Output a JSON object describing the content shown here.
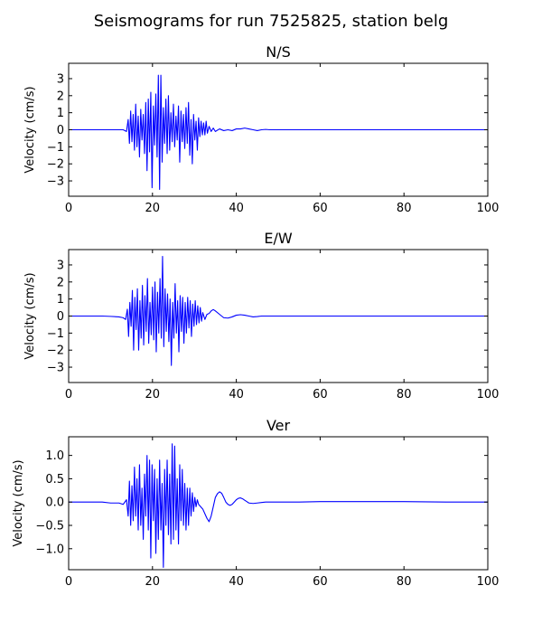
{
  "figure": {
    "suptitle": "Seismograms for run 7525825, station belg"
  },
  "chart_data": [
    {
      "type": "line",
      "title": "N/S",
      "xlabel": "",
      "ylabel": "Velocity (cm/s)",
      "xlim": [
        0,
        100
      ],
      "ylim": [
        -3.9,
        3.9
      ],
      "xticks": [
        0,
        20,
        40,
        60,
        80,
        100
      ],
      "yticks": [
        -3,
        -2,
        -1,
        0,
        1,
        2,
        3
      ],
      "ytick_labels": [
        "−3",
        "−2",
        "−1",
        "0",
        "1",
        "2",
        "3"
      ],
      "line_color": "#0000ff",
      "grid": false,
      "series": [
        {
          "x": [
            0,
            13,
            13.8,
            14.2,
            14.5,
            14.8,
            15.1,
            15.4,
            15.7,
            16.0,
            16.3,
            16.6,
            16.9,
            17.2,
            17.5,
            17.8,
            18.1,
            18.4,
            18.7,
            19.0,
            19.3,
            19.6,
            19.9,
            20.2,
            20.5,
            20.8,
            21.1,
            21.4,
            21.7,
            22.0,
            22.3,
            22.6,
            22.9,
            23.2,
            23.5,
            23.8,
            24.1,
            24.4,
            24.7,
            25.0,
            25.3,
            25.6,
            25.9,
            26.2,
            26.5,
            26.8,
            27.1,
            27.4,
            27.7,
            28.0,
            28.3,
            28.6,
            28.9,
            29.2,
            29.5,
            29.8,
            30.1,
            30.4,
            30.7,
            31.0,
            31.3,
            31.6,
            31.9,
            32.2,
            32.5,
            32.8,
            33.1,
            33.5,
            34.0,
            34.5,
            35.0,
            36.0,
            37.0,
            38.0,
            39.0,
            40.0,
            41.0,
            42.0,
            43.0,
            44.0,
            45.0,
            46.0,
            47.0,
            48.0,
            50.0,
            60.0,
            70.0,
            80.0,
            90.0,
            100.0
          ],
          "values": [
            0,
            0,
            -0.1,
            0.6,
            -0.8,
            1.1,
            -0.7,
            0.9,
            -1.2,
            1.5,
            -1.0,
            0.8,
            -1.6,
            1.2,
            -0.6,
            0.9,
            -1.4,
            1.6,
            -2.4,
            1.8,
            -1.3,
            2.2,
            -3.4,
            1.4,
            -0.9,
            2.1,
            -1.6,
            3.2,
            -3.5,
            3.2,
            -1.9,
            1.3,
            -0.8,
            1.8,
            -1.4,
            2.0,
            -1.2,
            1.0,
            -0.7,
            1.5,
            -1.0,
            0.8,
            -0.6,
            1.4,
            -1.9,
            1.1,
            -0.7,
            0.9,
            -1.1,
            1.3,
            -0.8,
            1.6,
            -1.5,
            0.6,
            -2.0,
            0.9,
            -0.6,
            0.5,
            -1.2,
            0.7,
            -0.4,
            0.5,
            -0.3,
            0.4,
            -0.3,
            0.5,
            -0.2,
            0.2,
            -0.1,
            0.1,
            -0.1,
            0.05,
            -0.05,
            0.0,
            -0.05,
            0.05,
            0.05,
            0.1,
            0.05,
            0.0,
            -0.05,
            0.0,
            0.02,
            0.0,
            0.0,
            0.0,
            0.0,
            0.0,
            0.0,
            0.0
          ]
        }
      ]
    },
    {
      "type": "line",
      "title": "E/W",
      "xlabel": "",
      "ylabel": "Velocity (cm/s)",
      "xlim": [
        0,
        100
      ],
      "ylim": [
        -3.9,
        3.9
      ],
      "xticks": [
        0,
        20,
        40,
        60,
        80,
        100
      ],
      "yticks": [
        -3,
        -2,
        -1,
        0,
        1,
        2,
        3
      ],
      "ytick_labels": [
        "−3",
        "−2",
        "−1",
        "0",
        "1",
        "2",
        "3"
      ],
      "line_color": "#0000ff",
      "grid": false,
      "series": [
        {
          "x": [
            0,
            8,
            10,
            12,
            13,
            13.6,
            14.0,
            14.3,
            14.6,
            14.9,
            15.2,
            15.5,
            15.8,
            16.1,
            16.4,
            16.7,
            17.0,
            17.3,
            17.6,
            17.9,
            18.2,
            18.5,
            18.8,
            19.1,
            19.4,
            19.7,
            20.0,
            20.3,
            20.6,
            20.9,
            21.2,
            21.5,
            21.8,
            22.1,
            22.4,
            22.7,
            23.0,
            23.3,
            23.6,
            23.9,
            24.2,
            24.5,
            24.8,
            25.1,
            25.4,
            25.7,
            26.0,
            26.3,
            26.6,
            26.9,
            27.2,
            27.5,
            27.8,
            28.1,
            28.4,
            28.7,
            29.0,
            29.3,
            29.6,
            29.9,
            30.2,
            30.5,
            30.8,
            31.1,
            31.4,
            31.7,
            32.0,
            32.5,
            33.0,
            33.5,
            34.0,
            34.5,
            35.0,
            36.0,
            37.0,
            38.0,
            39.0,
            40.0,
            41.0,
            42.0,
            43.0,
            44.0,
            45.0,
            46.0,
            48.0,
            50.0,
            60.0,
            70.0,
            80.0,
            90.0,
            100.0
          ],
          "values": [
            0,
            0,
            -0.02,
            -0.05,
            -0.1,
            -0.2,
            0.4,
            -1.2,
            0.8,
            -0.6,
            1.5,
            -2.0,
            1.1,
            -0.8,
            1.6,
            -2.0,
            0.9,
            -1.3,
            1.8,
            -1.7,
            1.2,
            -0.9,
            2.2,
            -1.6,
            0.8,
            -1.1,
            1.7,
            -1.4,
            2.0,
            -2.1,
            1.4,
            -1.0,
            2.2,
            -1.3,
            3.5,
            -1.8,
            1.6,
            -0.9,
            1.3,
            -1.5,
            1.0,
            -2.9,
            0.8,
            -1.3,
            1.9,
            -1.0,
            0.9,
            -2.1,
            1.2,
            -0.9,
            1.1,
            -1.6,
            0.8,
            -1.0,
            1.1,
            -0.7,
            0.9,
            -1.2,
            0.7,
            -0.6,
            0.9,
            -0.5,
            0.6,
            -0.4,
            0.5,
            -0.3,
            0.2,
            -0.2,
            0.1,
            0.15,
            0.3,
            0.38,
            0.3,
            0.1,
            -0.1,
            -0.12,
            -0.05,
            0.05,
            0.08,
            0.05,
            0.0,
            -0.05,
            -0.03,
            0.0,
            0.0,
            0.0,
            0.0,
            0.0,
            0.0,
            0.0,
            0.0
          ]
        }
      ]
    },
    {
      "type": "line",
      "title": "Ver",
      "xlabel": "",
      "ylabel": "Velocity (cm/s)",
      "xlim": [
        0,
        100
      ],
      "ylim": [
        -1.45,
        1.4
      ],
      "xticks": [
        0,
        20,
        40,
        60,
        80,
        100
      ],
      "yticks": [
        -1.0,
        -0.5,
        0.0,
        0.5,
        1.0
      ],
      "ytick_labels": [
        "−1.0",
        "−0.5",
        "0.0",
        "0.5",
        "1.0"
      ],
      "line_color": "#0000ff",
      "grid": false,
      "series": [
        {
          "x": [
            0,
            8,
            10,
            12,
            13,
            13.8,
            14.2,
            14.5,
            14.8,
            15.1,
            15.4,
            15.7,
            16.0,
            16.3,
            16.6,
            16.9,
            17.2,
            17.5,
            17.8,
            18.1,
            18.4,
            18.7,
            19.0,
            19.3,
            19.6,
            19.9,
            20.2,
            20.5,
            20.8,
            21.1,
            21.4,
            21.7,
            22.0,
            22.3,
            22.6,
            22.9,
            23.2,
            23.5,
            23.8,
            24.1,
            24.4,
            24.7,
            25.0,
            25.3,
            25.6,
            25.9,
            26.2,
            26.5,
            26.8,
            27.1,
            27.4,
            27.7,
            28.0,
            28.3,
            28.6,
            28.9,
            29.2,
            29.5,
            29.8,
            30.1,
            30.4,
            30.7,
            31.0,
            31.5,
            32.0,
            32.5,
            33.0,
            33.5,
            34.0,
            34.5,
            35.0,
            35.5,
            36.0,
            36.5,
            37.0,
            37.5,
            38.0,
            38.5,
            39.0,
            39.5,
            40.0,
            40.5,
            41.0,
            41.5,
            42.0,
            42.5,
            43.0,
            44.0,
            45.0,
            46.0,
            47.0,
            48.0,
            50.0,
            55.0,
            60.0,
            70.0,
            80.0,
            90.0,
            100.0
          ],
          "values": [
            0,
            0,
            -0.02,
            -0.02,
            -0.05,
            0.05,
            -0.3,
            0.45,
            -0.5,
            0.35,
            -0.4,
            0.75,
            -0.3,
            0.5,
            -0.6,
            0.8,
            -0.5,
            0.3,
            -0.8,
            0.6,
            -0.3,
            1.0,
            -0.6,
            0.9,
            -1.2,
            0.8,
            -0.4,
            0.7,
            -1.1,
            0.5,
            -0.8,
            0.9,
            -0.6,
            0.4,
            -1.4,
            0.7,
            -0.5,
            0.9,
            -0.7,
            0.6,
            -0.9,
            1.25,
            -0.8,
            1.2,
            -0.6,
            0.5,
            -0.9,
            0.8,
            -0.4,
            0.7,
            -0.5,
            0.4,
            -0.6,
            0.3,
            -0.5,
            0.3,
            -0.3,
            0.2,
            -0.2,
            0.1,
            -0.1,
            0.05,
            -0.05,
            -0.1,
            -0.15,
            -0.25,
            -0.35,
            -0.42,
            -0.3,
            -0.1,
            0.1,
            0.18,
            0.22,
            0.19,
            0.1,
            0.0,
            -0.05,
            -0.07,
            -0.05,
            0.0,
            0.05,
            0.08,
            0.09,
            0.07,
            0.04,
            0.01,
            -0.02,
            -0.03,
            -0.02,
            -0.01,
            0.0,
            0.0,
            0.0,
            0.0,
            0.01,
            0.01,
            0.01,
            0.0,
            0.0
          ]
        }
      ]
    }
  ]
}
